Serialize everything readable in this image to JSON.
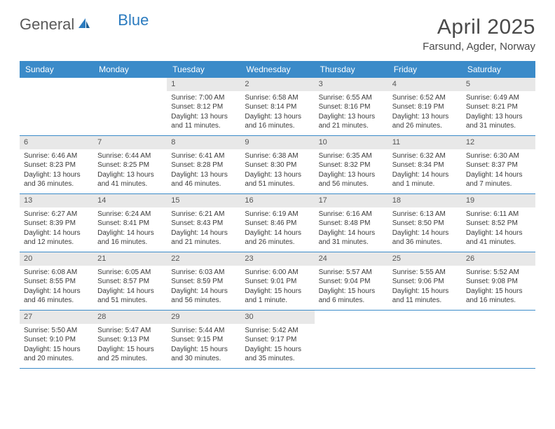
{
  "logo": {
    "text1": "General",
    "text2": "Blue"
  },
  "title": "April 2025",
  "location": "Farsund, Agder, Norway",
  "colors": {
    "header_bg": "#3b8bc9",
    "header_text": "#ffffff",
    "daynum_bg": "#e8e8e8",
    "row_border": "#3b8bc9",
    "body_text": "#3a3a3a",
    "title_text": "#4a4a4a",
    "logo_gray": "#5a5a5a",
    "logo_blue": "#2b7bbf"
  },
  "typography": {
    "title_fontsize": 30,
    "location_fontsize": 15,
    "header_fontsize": 12,
    "daynum_fontsize": 11,
    "cell_fontsize": 10
  },
  "weekdays": [
    "Sunday",
    "Monday",
    "Tuesday",
    "Wednesday",
    "Thursday",
    "Friday",
    "Saturday"
  ],
  "weeks": [
    [
      {
        "empty": true
      },
      {
        "empty": true
      },
      {
        "day": "1",
        "sunrise": "Sunrise: 7:00 AM",
        "sunset": "Sunset: 8:12 PM",
        "daylight": "Daylight: 13 hours and 11 minutes."
      },
      {
        "day": "2",
        "sunrise": "Sunrise: 6:58 AM",
        "sunset": "Sunset: 8:14 PM",
        "daylight": "Daylight: 13 hours and 16 minutes."
      },
      {
        "day": "3",
        "sunrise": "Sunrise: 6:55 AM",
        "sunset": "Sunset: 8:16 PM",
        "daylight": "Daylight: 13 hours and 21 minutes."
      },
      {
        "day": "4",
        "sunrise": "Sunrise: 6:52 AM",
        "sunset": "Sunset: 8:19 PM",
        "daylight": "Daylight: 13 hours and 26 minutes."
      },
      {
        "day": "5",
        "sunrise": "Sunrise: 6:49 AM",
        "sunset": "Sunset: 8:21 PM",
        "daylight": "Daylight: 13 hours and 31 minutes."
      }
    ],
    [
      {
        "day": "6",
        "sunrise": "Sunrise: 6:46 AM",
        "sunset": "Sunset: 8:23 PM",
        "daylight": "Daylight: 13 hours and 36 minutes."
      },
      {
        "day": "7",
        "sunrise": "Sunrise: 6:44 AM",
        "sunset": "Sunset: 8:25 PM",
        "daylight": "Daylight: 13 hours and 41 minutes."
      },
      {
        "day": "8",
        "sunrise": "Sunrise: 6:41 AM",
        "sunset": "Sunset: 8:28 PM",
        "daylight": "Daylight: 13 hours and 46 minutes."
      },
      {
        "day": "9",
        "sunrise": "Sunrise: 6:38 AM",
        "sunset": "Sunset: 8:30 PM",
        "daylight": "Daylight: 13 hours and 51 minutes."
      },
      {
        "day": "10",
        "sunrise": "Sunrise: 6:35 AM",
        "sunset": "Sunset: 8:32 PM",
        "daylight": "Daylight: 13 hours and 56 minutes."
      },
      {
        "day": "11",
        "sunrise": "Sunrise: 6:32 AM",
        "sunset": "Sunset: 8:34 PM",
        "daylight": "Daylight: 14 hours and 1 minute."
      },
      {
        "day": "12",
        "sunrise": "Sunrise: 6:30 AM",
        "sunset": "Sunset: 8:37 PM",
        "daylight": "Daylight: 14 hours and 7 minutes."
      }
    ],
    [
      {
        "day": "13",
        "sunrise": "Sunrise: 6:27 AM",
        "sunset": "Sunset: 8:39 PM",
        "daylight": "Daylight: 14 hours and 12 minutes."
      },
      {
        "day": "14",
        "sunrise": "Sunrise: 6:24 AM",
        "sunset": "Sunset: 8:41 PM",
        "daylight": "Daylight: 14 hours and 16 minutes."
      },
      {
        "day": "15",
        "sunrise": "Sunrise: 6:21 AM",
        "sunset": "Sunset: 8:43 PM",
        "daylight": "Daylight: 14 hours and 21 minutes."
      },
      {
        "day": "16",
        "sunrise": "Sunrise: 6:19 AM",
        "sunset": "Sunset: 8:46 PM",
        "daylight": "Daylight: 14 hours and 26 minutes."
      },
      {
        "day": "17",
        "sunrise": "Sunrise: 6:16 AM",
        "sunset": "Sunset: 8:48 PM",
        "daylight": "Daylight: 14 hours and 31 minutes."
      },
      {
        "day": "18",
        "sunrise": "Sunrise: 6:13 AM",
        "sunset": "Sunset: 8:50 PM",
        "daylight": "Daylight: 14 hours and 36 minutes."
      },
      {
        "day": "19",
        "sunrise": "Sunrise: 6:11 AM",
        "sunset": "Sunset: 8:52 PM",
        "daylight": "Daylight: 14 hours and 41 minutes."
      }
    ],
    [
      {
        "day": "20",
        "sunrise": "Sunrise: 6:08 AM",
        "sunset": "Sunset: 8:55 PM",
        "daylight": "Daylight: 14 hours and 46 minutes."
      },
      {
        "day": "21",
        "sunrise": "Sunrise: 6:05 AM",
        "sunset": "Sunset: 8:57 PM",
        "daylight": "Daylight: 14 hours and 51 minutes."
      },
      {
        "day": "22",
        "sunrise": "Sunrise: 6:03 AM",
        "sunset": "Sunset: 8:59 PM",
        "daylight": "Daylight: 14 hours and 56 minutes."
      },
      {
        "day": "23",
        "sunrise": "Sunrise: 6:00 AM",
        "sunset": "Sunset: 9:01 PM",
        "daylight": "Daylight: 15 hours and 1 minute."
      },
      {
        "day": "24",
        "sunrise": "Sunrise: 5:57 AM",
        "sunset": "Sunset: 9:04 PM",
        "daylight": "Daylight: 15 hours and 6 minutes."
      },
      {
        "day": "25",
        "sunrise": "Sunrise: 5:55 AM",
        "sunset": "Sunset: 9:06 PM",
        "daylight": "Daylight: 15 hours and 11 minutes."
      },
      {
        "day": "26",
        "sunrise": "Sunrise: 5:52 AM",
        "sunset": "Sunset: 9:08 PM",
        "daylight": "Daylight: 15 hours and 16 minutes."
      }
    ],
    [
      {
        "day": "27",
        "sunrise": "Sunrise: 5:50 AM",
        "sunset": "Sunset: 9:10 PM",
        "daylight": "Daylight: 15 hours and 20 minutes."
      },
      {
        "day": "28",
        "sunrise": "Sunrise: 5:47 AM",
        "sunset": "Sunset: 9:13 PM",
        "daylight": "Daylight: 15 hours and 25 minutes."
      },
      {
        "day": "29",
        "sunrise": "Sunrise: 5:44 AM",
        "sunset": "Sunset: 9:15 PM",
        "daylight": "Daylight: 15 hours and 30 minutes."
      },
      {
        "day": "30",
        "sunrise": "Sunrise: 5:42 AM",
        "sunset": "Sunset: 9:17 PM",
        "daylight": "Daylight: 15 hours and 35 minutes."
      },
      {
        "empty": true
      },
      {
        "empty": true
      },
      {
        "empty": true
      }
    ]
  ]
}
